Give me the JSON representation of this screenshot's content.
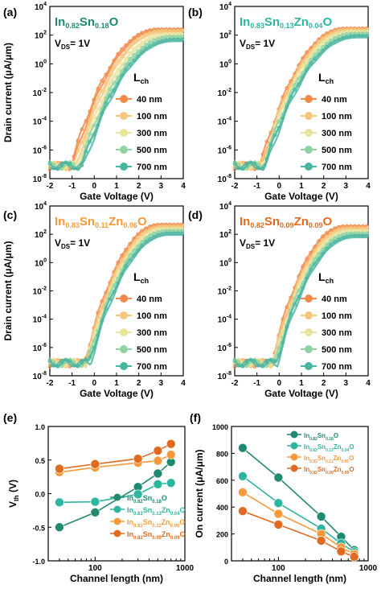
{
  "colors": {
    "c40": "#f28a4c",
    "c100": "#f7c77e",
    "c300": "#e6e49d",
    "c500": "#8fd3a3",
    "c700": "#4ab5a1",
    "teal_dark": "#1f8a70",
    "teal": "#2eb5a0",
    "orange": "#f59a3a",
    "orange_dark": "#e06a20"
  },
  "chart_data": [
    {
      "type": "line",
      "panel": "(a)",
      "title": {
        "base": "In",
        "s1": "0.82",
        "e2": "Sn",
        "s2": "0.18",
        "e3": "O",
        "s3": "",
        "e4": "",
        "color": "#1f8a70"
      },
      "vds": {
        "pre": "V",
        "sub": "DS",
        "post": "= 1V"
      },
      "legend_title": {
        "pre": "L",
        "sub": "ch"
      },
      "xlabel": "Gate Voltage (V)",
      "ylabel": "Drain current (μA/μm)",
      "xticks": [
        "-2",
        "-1",
        "0",
        "1",
        "2",
        "3",
        "4"
      ],
      "yticks": [
        {
          "b": "10",
          "e": "-8"
        },
        {
          "b": "10",
          "e": "-6"
        },
        {
          "b": "10",
          "e": "-4"
        },
        {
          "b": "10",
          "e": "-2"
        },
        {
          "b": "10",
          "e": "0"
        },
        {
          "b": "10",
          "e": "2"
        },
        {
          "b": "10",
          "e": "4"
        }
      ],
      "xlim": [
        -2,
        4
      ],
      "ylim_log10": [
        -8,
        4
      ],
      "series": [
        {
          "name": "40 nm",
          "von": -1.05,
          "ion": 260,
          "vsat": 2.9
        },
        {
          "name": "100 nm",
          "von": -0.9,
          "ion": 200,
          "vsat": 3.1
        },
        {
          "name": "300 nm",
          "von": -0.75,
          "ion": 120,
          "vsat": 3.3
        },
        {
          "name": "500 nm",
          "von": -0.65,
          "ion": 80,
          "vsat": 3.5
        },
        {
          "name": "700 nm",
          "von": -0.55,
          "ion": 50,
          "vsat": 3.6
        }
      ]
    },
    {
      "type": "line",
      "panel": "(b)",
      "title": {
        "base": "In",
        "s1": "0.83",
        "e2": "Sn",
        "s2": "0.13",
        "e3": "Zn",
        "s3": "0.04",
        "e4": "O",
        "color": "#2eb5a0"
      },
      "vds": {
        "pre": "V",
        "sub": "DS",
        "post": "= 1V"
      },
      "legend_title": {
        "pre": "L",
        "sub": "ch"
      },
      "xlabel": "Gate Voltage (V)",
      "ylabel": "",
      "xticks": [
        "-2",
        "-1",
        "0",
        "1",
        "2",
        "3",
        "4"
      ],
      "yticks": [
        {
          "b": "10",
          "e": "-8"
        },
        {
          "b": "10",
          "e": "-6"
        },
        {
          "b": "10",
          "e": "-4"
        },
        {
          "b": "10",
          "e": "-2"
        },
        {
          "b": "10",
          "e": "0"
        },
        {
          "b": "10",
          "e": "2"
        },
        {
          "b": "10",
          "e": "4"
        }
      ],
      "xlim": [
        -2,
        4
      ],
      "ylim_log10": [
        -8,
        4
      ],
      "series": [
        {
          "name": "40 nm",
          "von": -0.85,
          "ion": 300,
          "vsat": 3.0
        },
        {
          "name": "100 nm",
          "von": -0.8,
          "ion": 250,
          "vsat": 3.1
        },
        {
          "name": "300 nm",
          "von": -0.75,
          "ion": 180,
          "vsat": 3.2
        },
        {
          "name": "500 nm",
          "von": -0.7,
          "ion": 130,
          "vsat": 3.4
        },
        {
          "name": "700 nm",
          "von": -0.65,
          "ion": 90,
          "vsat": 3.5
        }
      ]
    },
    {
      "type": "line",
      "panel": "(c)",
      "title": {
        "base": "In",
        "s1": "0.83",
        "e2": "Sn",
        "s2": "0.11",
        "e3": "Zn",
        "s3": "0.06",
        "e4": "O",
        "color": "#f59a3a"
      },
      "vds": {
        "pre": "V",
        "sub": "DS",
        "post": "= 1V"
      },
      "legend_title": {
        "pre": "L",
        "sub": "ch"
      },
      "xlabel": "Gate Voltage (V)",
      "ylabel": "Drain current (μA/μm)",
      "xticks": [
        "-2",
        "-1",
        "0",
        "1",
        "2",
        "3",
        "4"
      ],
      "yticks": [
        {
          "b": "10",
          "e": "-8"
        },
        {
          "b": "10",
          "e": "-6"
        },
        {
          "b": "10",
          "e": "-4"
        },
        {
          "b": "10",
          "e": "-2"
        },
        {
          "b": "10",
          "e": "0"
        },
        {
          "b": "10",
          "e": "2"
        },
        {
          "b": "10",
          "e": "4"
        }
      ],
      "xlim": [
        -2,
        4
      ],
      "ylim_log10": [
        -8,
        4
      ],
      "series": [
        {
          "name": "40 nm",
          "von": -0.45,
          "ion": 500,
          "vsat": 3.0
        },
        {
          "name": "100 nm",
          "von": -0.4,
          "ion": 380,
          "vsat": 3.1
        },
        {
          "name": "300 nm",
          "von": -0.35,
          "ion": 250,
          "vsat": 3.2
        },
        {
          "name": "500 nm",
          "von": -0.3,
          "ion": 180,
          "vsat": 3.3
        },
        {
          "name": "700 nm",
          "von": -0.25,
          "ion": 120,
          "vsat": 3.4
        }
      ]
    },
    {
      "type": "line",
      "panel": "(d)",
      "title": {
        "base": "In",
        "s1": "0.82",
        "e2": "Sn",
        "s2": "0.09",
        "e3": "Zn",
        "s3": "0.09",
        "e4": "O",
        "color": "#e06a20"
      },
      "vds": {
        "pre": "V",
        "sub": "DS",
        "post": "= 1V"
      },
      "legend_title": {
        "pre": "L",
        "sub": "ch"
      },
      "xlabel": "Gate Voltage (V)",
      "ylabel": "",
      "xticks": [
        "-2",
        "-1",
        "0",
        "1",
        "2",
        "3",
        "4"
      ],
      "yticks": [
        {
          "b": "10",
          "e": "-8"
        },
        {
          "b": "10",
          "e": "-6"
        },
        {
          "b": "10",
          "e": "-4"
        },
        {
          "b": "10",
          "e": "-2"
        },
        {
          "b": "10",
          "e": "0"
        },
        {
          "b": "10",
          "e": "2"
        },
        {
          "b": "10",
          "e": "4"
        }
      ],
      "xlim": [
        -2,
        4
      ],
      "ylim_log10": [
        -8,
        4
      ],
      "series": [
        {
          "name": "40 nm",
          "von": -0.35,
          "ion": 380,
          "vsat": 3.0
        },
        {
          "name": "100 nm",
          "von": -0.3,
          "ion": 280,
          "vsat": 3.1
        },
        {
          "name": "300 nm",
          "von": -0.25,
          "ion": 180,
          "vsat": 3.2
        },
        {
          "name": "500 nm",
          "von": -0.2,
          "ion": 120,
          "vsat": 3.3
        },
        {
          "name": "700 nm",
          "von": -0.15,
          "ion": 80,
          "vsat": 3.4
        }
      ]
    },
    {
      "type": "scatter",
      "panel": "(e)",
      "xlabel": "Channel length (nm)",
      "ylabel": {
        "pre": "V",
        "sub": "th",
        "post": " (V)"
      },
      "xscale": "log",
      "xlim": [
        30,
        1000
      ],
      "xticks": [
        "100",
        "1000"
      ],
      "ylim": [
        -1.0,
        1.0
      ],
      "yticks": [
        "-1.0",
        "-0.5",
        "0.0",
        "0.5",
        "1.0"
      ],
      "x": [
        40,
        100,
        300,
        500,
        700
      ],
      "series": [
        {
          "label": {
            "base": "In",
            "s1": "0.82",
            "e2": "Sn",
            "s2": "0.18",
            "e3": "O",
            "s3": "",
            "e4": ""
          },
          "color": "#1f8a70",
          "values": [
            -0.5,
            -0.28,
            0.1,
            0.3,
            0.47
          ]
        },
        {
          "label": {
            "base": "In",
            "s1": "0.83",
            "e2": "Sn",
            "s2": "0.13",
            "e3": "Zn",
            "s3": "0.04",
            "e4": "O"
          },
          "color": "#2eb5a0",
          "values": [
            -0.13,
            -0.12,
            -0.01,
            0.14,
            0.16
          ]
        },
        {
          "label": {
            "base": "In",
            "s1": "0.83",
            "e2": "Sn",
            "s2": "0.11",
            "e3": "Zn",
            "s3": "0.06",
            "e4": "O"
          },
          "color": "#f59a3a",
          "values": [
            0.32,
            0.39,
            0.46,
            0.49,
            0.58
          ]
        },
        {
          "label": {
            "base": "In",
            "s1": "0.82",
            "e2": "Sn",
            "s2": "0.09",
            "e3": "Zn",
            "s3": "0.09",
            "e4": "O"
          },
          "color": "#e06a20",
          "values": [
            0.37,
            0.44,
            0.52,
            0.64,
            0.74
          ]
        }
      ]
    },
    {
      "type": "scatter",
      "panel": "(f)",
      "xlabel": "Channel length (nm)",
      "ylabel": "On current (μA/μm)",
      "xscale": "log",
      "xlim": [
        30,
        1000
      ],
      "xticks": [
        "100",
        "1000"
      ],
      "ylim": [
        0,
        1000
      ],
      "yticks": [
        "0",
        "200",
        "400",
        "600",
        "800",
        "1000"
      ],
      "x": [
        40,
        100,
        300,
        500,
        700
      ],
      "series": [
        {
          "label": {
            "base": "In",
            "s1": "0.82",
            "e2": "Sn",
            "s2": "0.18",
            "e3": "O",
            "s3": "",
            "e4": ""
          },
          "color": "#1f8a70",
          "values": [
            840,
            620,
            330,
            180,
            80
          ]
        },
        {
          "label": {
            "base": "In",
            "s1": "0.83",
            "e2": "Sn",
            "s2": "0.13",
            "e3": "Zn",
            "s3": "0.04",
            "e4": "O"
          },
          "color": "#2eb5a0",
          "values": [
            630,
            430,
            240,
            130,
            65
          ]
        },
        {
          "label": {
            "base": "In",
            "s1": "0.83",
            "e2": "Sn",
            "s2": "0.11",
            "e3": "Zn",
            "s3": "0.06",
            "e4": "O"
          },
          "color": "#f59a3a",
          "values": [
            510,
            350,
            200,
            100,
            50
          ]
        },
        {
          "label": {
            "base": "In",
            "s1": "0.82",
            "e2": "Sn",
            "s2": "0.09",
            "e3": "Zn",
            "s3": "0.09",
            "e4": "O"
          },
          "color": "#e06a20",
          "values": [
            370,
            270,
            150,
            70,
            30
          ]
        }
      ]
    }
  ]
}
